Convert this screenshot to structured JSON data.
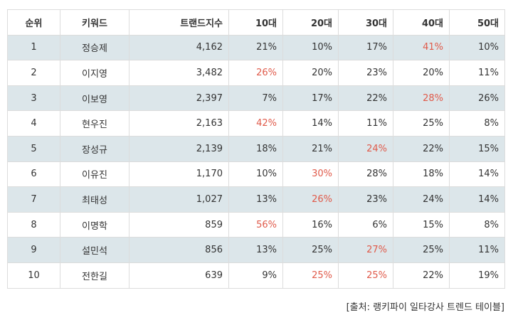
{
  "table": {
    "headers": [
      "순위",
      "키워드",
      "트랜드지수",
      "10대",
      "20대",
      "30대",
      "40대",
      "50대"
    ],
    "rows": [
      {
        "rank": "1",
        "keyword": "정승제",
        "index": "4,162",
        "ages": [
          "21%",
          "10%",
          "17%",
          "41%",
          "10%"
        ],
        "highlight": 3
      },
      {
        "rank": "2",
        "keyword": "이지영",
        "index": "3,482",
        "ages": [
          "26%",
          "20%",
          "23%",
          "20%",
          "11%"
        ],
        "highlight": 0
      },
      {
        "rank": "3",
        "keyword": "이보영",
        "index": "2,397",
        "ages": [
          "7%",
          "17%",
          "22%",
          "28%",
          "26%"
        ],
        "highlight": 3
      },
      {
        "rank": "4",
        "keyword": "현우진",
        "index": "2,163",
        "ages": [
          "42%",
          "14%",
          "11%",
          "25%",
          "8%"
        ],
        "highlight": 0
      },
      {
        "rank": "5",
        "keyword": "장성규",
        "index": "2,139",
        "ages": [
          "18%",
          "21%",
          "24%",
          "22%",
          "15%"
        ],
        "highlight": 2
      },
      {
        "rank": "6",
        "keyword": "이유진",
        "index": "1,170",
        "ages": [
          "10%",
          "30%",
          "28%",
          "18%",
          "14%"
        ],
        "highlight": 1
      },
      {
        "rank": "7",
        "keyword": "최태성",
        "index": "1,027",
        "ages": [
          "13%",
          "26%",
          "23%",
          "24%",
          "14%"
        ],
        "highlight": 1
      },
      {
        "rank": "8",
        "keyword": "이명학",
        "index": "859",
        "ages": [
          "56%",
          "16%",
          "6%",
          "15%",
          "8%"
        ],
        "highlight": 0
      },
      {
        "rank": "9",
        "keyword": "설민석",
        "index": "856",
        "ages": [
          "13%",
          "25%",
          "27%",
          "25%",
          "11%"
        ],
        "highlight": 2
      },
      {
        "rank": "10",
        "keyword": "전한길",
        "index": "639",
        "ages": [
          "9%",
          "25%",
          "25%",
          "22%",
          "19%"
        ],
        "highlight": [
          1,
          2
        ]
      }
    ]
  },
  "source": "[출처: 랭키파이 일타강사 트렌드 테이블]",
  "colors": {
    "highlight": "#e05a4a",
    "stripe": "#dce6ea",
    "border": "#dcdcdc"
  }
}
